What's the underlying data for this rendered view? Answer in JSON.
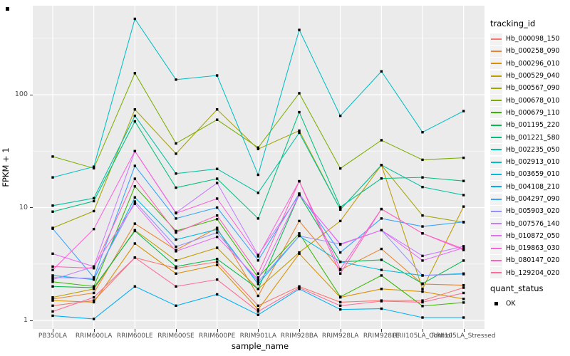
{
  "figure": {
    "background": "#FFFFFF",
    "panel_background": "#EBEBEB",
    "gridline_color": "#FFFFFF",
    "point_color": "#000000"
  },
  "y_axis": {
    "title": "FPKM + 1",
    "ticks": [
      {
        "label": "1",
        "value": 1
      },
      {
        "label": "10",
        "value": 10
      },
      {
        "label": "100",
        "value": 100
      }
    ],
    "minor_values": [
      3.1623,
      31.623,
      316.23
    ]
  },
  "x_axis": {
    "title": "sample_name"
  },
  "legend_tracking": {
    "title": "tracking_id"
  },
  "legend_quant": {
    "title": "quant_status",
    "items": [
      {
        "label": "OK",
        "shape": "filled-square"
      }
    ]
  },
  "chart_data": {
    "type": "line",
    "title": "",
    "xlabel": "sample_name",
    "ylabel": "FPKM + 1",
    "y_scale": "log10",
    "ylim": [
      0.95,
      620
    ],
    "grid": true,
    "legend_position": "right",
    "point_shape": "filled-square",
    "categories": [
      "PB350LA",
      "RRIM600LA",
      "RRIM600LE",
      "RRIM600SE",
      "RRIM600PE",
      "RRIM901LA",
      "RRIM928BA",
      "RRIM928LA",
      "RRIM928LE",
      "RRII105LA_Control",
      "RRII105LA_Stressed"
    ],
    "series": [
      {
        "name": "Hb_000098_150",
        "color": "#F8766D",
        "values": [
          1.35,
          1.5,
          3.6,
          2.9,
          3.3,
          1.35,
          2.0,
          1.45,
          1.5,
          1.5,
          1.95
        ]
      },
      {
        "name": "Hb_000258_090",
        "color": "#EA8331",
        "values": [
          1.55,
          1.75,
          7.2,
          4.2,
          6.6,
          1.65,
          7.6,
          2.8,
          4.3,
          2.1,
          2.05
        ]
      },
      {
        "name": "Hb_000296_010",
        "color": "#D89000",
        "values": [
          1.5,
          1.45,
          4.8,
          2.6,
          3.1,
          1.25,
          3.9,
          1.6,
          1.9,
          1.8,
          1.55
        ]
      },
      {
        "name": "Hb_000529_040",
        "color": "#C09B00",
        "values": [
          1.6,
          1.9,
          6.3,
          3.4,
          4.4,
          1.9,
          4.0,
          7.6,
          23.8,
          1.9,
          10.2
        ]
      },
      {
        "name": "Hb_000567_090",
        "color": "#A3A500",
        "values": [
          6.6,
          9.3,
          74,
          30,
          74,
          33,
          48,
          9.6,
          23.8,
          8.5,
          7.4
        ]
      },
      {
        "name": "Hb_000678_010",
        "color": "#7CAE00",
        "values": [
          28.3,
          22.3,
          155,
          37,
          60,
          34,
          103,
          22.2,
          39.5,
          26.5,
          27.6
        ]
      },
      {
        "name": "Hb_000679_110",
        "color": "#39B600",
        "values": [
          2.2,
          2.0,
          15.4,
          6.2,
          7.9,
          2.4,
          5.9,
          1.62,
          2.5,
          1.34,
          1.44
        ]
      },
      {
        "name": "Hb_001195_220",
        "color": "#00BB4E",
        "values": [
          2.0,
          1.95,
          6.2,
          3.0,
          3.5,
          1.9,
          13.0,
          3.3,
          3.44,
          2.12,
          3.39
        ]
      },
      {
        "name": "Hb_001221_580",
        "color": "#00BF7D",
        "values": [
          9.2,
          11.4,
          58,
          15,
          18,
          8.0,
          70,
          10.1,
          18.1,
          18.5,
          17.2
        ]
      },
      {
        "name": "Hb_002235_050",
        "color": "#00C1A3",
        "values": [
          10.4,
          12.1,
          65,
          20,
          22,
          13.5,
          46,
          9.6,
          23.8,
          15.2,
          12.9
        ]
      },
      {
        "name": "Hb_002913_010",
        "color": "#00BFC4",
        "values": [
          18.5,
          23,
          470,
          136,
          148,
          19.5,
          375,
          65,
          161,
          46.5,
          71.6
        ]
      },
      {
        "name": "Hb_003659_010",
        "color": "#00BAE0",
        "values": [
          2.5,
          2.3,
          12.3,
          5.2,
          6.4,
          2.1,
          5.6,
          3.3,
          2.8,
          2.5,
          2.6
        ]
      },
      {
        "name": "Hb_004108_210",
        "color": "#00B0F6",
        "values": [
          1.1,
          1.03,
          2.0,
          1.35,
          1.7,
          1.12,
          1.9,
          1.25,
          1.27,
          1.06,
          1.06
        ]
      },
      {
        "name": "Hb_004297_090",
        "color": "#35A2FF",
        "values": [
          6.5,
          2.4,
          23.4,
          8.0,
          10.0,
          3.4,
          13.3,
          4.0,
          8.0,
          6.8,
          7.45
        ]
      },
      {
        "name": "Hb_005903_020",
        "color": "#9590FF",
        "values": [
          2.4,
          2.36,
          11.3,
          4.5,
          6.0,
          2.2,
          5.6,
          4.75,
          6.3,
          2.5,
          2.57
        ]
      },
      {
        "name": "Hb_007576_140",
        "color": "#C77CFF",
        "values": [
          2.3,
          3.0,
          31.6,
          9.0,
          16.5,
          3.8,
          12.9,
          4.75,
          6.3,
          3.73,
          4.54
        ]
      },
      {
        "name": "Hb_010872_050",
        "color": "#E76BF3",
        "values": [
          3.9,
          3.0,
          10.8,
          4.1,
          5.5,
          2.3,
          13.0,
          4.7,
          6.3,
          3.39,
          4.4
        ]
      },
      {
        "name": "Hb_019863_030",
        "color": "#FA62DB",
        "values": [
          2.8,
          6.45,
          31.6,
          8.9,
          12.0,
          3.7,
          17.1,
          2.85,
          9.7,
          5.9,
          4.2
        ]
      },
      {
        "name": "Hb_080147_020",
        "color": "#FF62BC",
        "values": [
          3.0,
          2.9,
          18.0,
          6.0,
          8.5,
          2.6,
          17.1,
          2.6,
          9.7,
          5.9,
          4.3
        ]
      },
      {
        "name": "Hb_129204_020",
        "color": "#FF6A98",
        "values": [
          1.2,
          1.6,
          3.6,
          2.0,
          2.3,
          1.2,
          1.95,
          1.35,
          1.48,
          1.45,
          1.75
        ]
      }
    ]
  }
}
